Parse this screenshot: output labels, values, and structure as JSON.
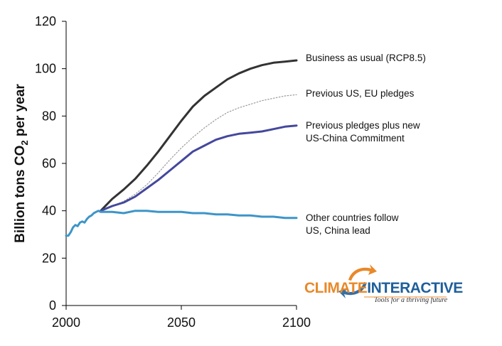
{
  "chart_data": {
    "type": "line",
    "title": "",
    "xlabel": "",
    "ylabel_main": "Billion tons CO",
    "ylabel_sub": "2",
    "ylabel_tail": " per year",
    "xlim": [
      2000,
      2100
    ],
    "ylim": [
      0,
      120
    ],
    "xticks": [
      "2000",
      "2050",
      "2100"
    ],
    "yticks": [
      "0",
      "20",
      "40",
      "60",
      "80",
      "100",
      "120"
    ],
    "grid": false,
    "series": [
      {
        "name": "Business as usual (RCP8.5)",
        "color": "#333333",
        "style": "solid",
        "x": [
          2015,
          2020,
          2025,
          2030,
          2035,
          2040,
          2045,
          2050,
          2055,
          2060,
          2065,
          2070,
          2075,
          2080,
          2085,
          2090,
          2095,
          2100
        ],
        "y": [
          40,
          45,
          49,
          53.5,
          59,
          65,
          71.5,
          78,
          84,
          88.5,
          92,
          95.5,
          98,
          100,
          101.5,
          102.5,
          103,
          103.5
        ]
      },
      {
        "name": "Previous US, EU pledges",
        "color": "#999999",
        "style": "dotted",
        "x": [
          2015,
          2020,
          2025,
          2030,
          2035,
          2040,
          2045,
          2050,
          2055,
          2060,
          2065,
          2070,
          2075,
          2080,
          2085,
          2090,
          2095,
          2100
        ],
        "y": [
          40,
          42,
          44,
          47,
          51,
          56,
          61.5,
          66.5,
          71,
          75,
          78.5,
          81.5,
          83.5,
          85,
          86.5,
          87.5,
          88.5,
          89
        ]
      },
      {
        "name": "Previous pledges plus new US-China Commitment",
        "label_lines": [
          "Previous pledges plus new",
          "US-China Commitment"
        ],
        "color": "#44489c",
        "style": "solid",
        "x": [
          2015,
          2020,
          2025,
          2030,
          2035,
          2040,
          2045,
          2050,
          2055,
          2060,
          2065,
          2070,
          2075,
          2080,
          2085,
          2090,
          2095,
          2100
        ],
        "y": [
          40,
          42,
          43.5,
          46,
          49.5,
          53,
          57,
          61,
          65,
          67.5,
          70,
          71.5,
          72.5,
          73,
          73.5,
          74.5,
          75.5,
          76
        ]
      },
      {
        "name": "Other countries follow US, China lead",
        "label_lines": [
          "Other countries follow",
          "US, China lead"
        ],
        "color": "#3d95c8",
        "style": "solid",
        "x": [
          2000,
          2001,
          2002,
          2003,
          2004,
          2005,
          2006,
          2007,
          2008,
          2009,
          2010,
          2011,
          2012,
          2013,
          2014,
          2015,
          2020,
          2025,
          2030,
          2035,
          2040,
          2045,
          2050,
          2055,
          2060,
          2065,
          2070,
          2075,
          2080,
          2085,
          2090,
          2095,
          2100
        ],
        "y": [
          29.5,
          29.5,
          31,
          33,
          34,
          33.5,
          35,
          35.5,
          35,
          36.5,
          37.5,
          38,
          39,
          39.5,
          40,
          39.5,
          39.5,
          39,
          40,
          40,
          39.5,
          39.5,
          39.5,
          39,
          39,
          38.5,
          38.5,
          38,
          38,
          37.5,
          37.5,
          37,
          37
        ]
      }
    ],
    "legend": "inline-right"
  },
  "logo": {
    "word_a": "CLIMATE",
    "word_b": "INTERACTIVE",
    "tagline": "Tools for a thriving future",
    "color_a": "#e8892a",
    "color_b": "#1f5f9a"
  }
}
